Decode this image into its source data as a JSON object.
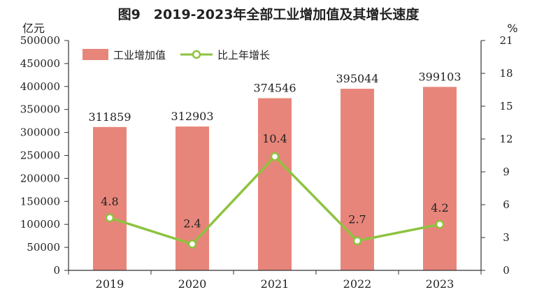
{
  "chart_data": {
    "type": "bar",
    "title": "图9　2019-2023年全部工业增加值及其增长速度",
    "categories": [
      "2019",
      "2020",
      "2021",
      "2022",
      "2023"
    ],
    "series": [
      {
        "name": "工业增加值",
        "kind": "bar",
        "axis": "left",
        "color": "#e8857a",
        "values": [
          311859,
          312903,
          374546,
          395044,
          399103
        ]
      },
      {
        "name": "比上年增长",
        "kind": "line",
        "axis": "right",
        "color": "#8dc33f",
        "values": [
          4.8,
          2.4,
          10.4,
          2.7,
          4.2
        ]
      }
    ],
    "left_axis": {
      "unit": "亿元",
      "ylim": [
        0,
        500000
      ],
      "ticks": [
        "0",
        "50000",
        "100000",
        "150000",
        "200000",
        "250000",
        "300000",
        "350000",
        "400000",
        "450000",
        "500000"
      ]
    },
    "right_axis": {
      "unit": "%",
      "ylim": [
        0,
        21
      ],
      "ticks": [
        "0",
        "3",
        "6",
        "9",
        "12",
        "15",
        "18",
        "21"
      ]
    },
    "bar_labels": [
      "311859",
      "312903",
      "374546",
      "395044",
      "399103"
    ],
    "line_labels": [
      "4.8",
      "2.4",
      "10.4",
      "2.7",
      "4.2"
    ],
    "legend": {
      "placement": "top-left",
      "entries": [
        "工业增加值",
        "比上年增长"
      ]
    },
    "grid": false
  }
}
